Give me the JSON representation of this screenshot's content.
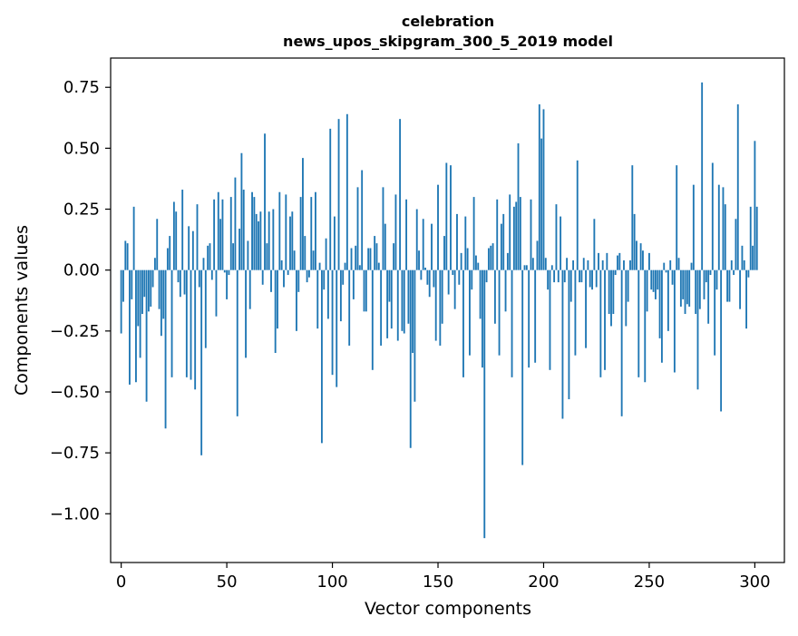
{
  "chart_data": {
    "type": "bar",
    "title_line1": "celebration",
    "title_line2": "news_upos_skipgram_300_5_2019 model",
    "xlabel": "Vector components",
    "ylabel": "Components values",
    "xlim": [
      -5,
      314
    ],
    "ylim": [
      -1.2,
      0.87
    ],
    "xticks": [
      0,
      50,
      100,
      150,
      200,
      250,
      300
    ],
    "xtick_labels": [
      "0",
      "50",
      "100",
      "150",
      "200",
      "250",
      "300"
    ],
    "yticks": [
      0.75,
      0.5,
      0.25,
      0.0,
      -0.25,
      -0.5,
      -0.75,
      -1.0
    ],
    "ytick_labels": [
      "0.75",
      "0.50",
      "0.25",
      "0.00",
      "−0.25",
      "−0.50",
      "−0.75",
      "−1.00"
    ],
    "bar_color": "#1f77b4",
    "grid": false,
    "values": [
      -0.26,
      -0.13,
      0.12,
      0.11,
      -0.47,
      -0.12,
      0.26,
      -0.46,
      -0.23,
      -0.36,
      -0.18,
      -0.11,
      -0.54,
      -0.17,
      -0.15,
      -0.07,
      0.05,
      0.21,
      -0.16,
      -0.27,
      -0.2,
      -0.65,
      0.09,
      0.14,
      -0.44,
      0.28,
      0.24,
      -0.05,
      -0.11,
      0.33,
      -0.1,
      -0.44,
      0.18,
      -0.45,
      0.16,
      -0.49,
      0.27,
      -0.07,
      -0.76,
      0.05,
      -0.32,
      0.1,
      0.11,
      -0.04,
      0.29,
      -0.19,
      0.32,
      0.21,
      0.29,
      -0.01,
      -0.12,
      -0.02,
      0.3,
      0.11,
      0.38,
      -0.6,
      0.17,
      0.48,
      0.33,
      -0.36,
      0.12,
      -0.16,
      0.32,
      0.3,
      0.23,
      0.2,
      0.24,
      -0.06,
      0.56,
      0.11,
      0.24,
      -0.09,
      0.25,
      -0.34,
      -0.24,
      0.32,
      0.04,
      -0.07,
      0.31,
      -0.02,
      0.22,
      0.24,
      0.08,
      -0.25,
      -0.09,
      0.3,
      0.46,
      0.14,
      -0.05,
      -0.03,
      0.3,
      0.08,
      0.32,
      -0.24,
      0.03,
      -0.71,
      -0.08,
      0.13,
      -0.2,
      0.58,
      -0.43,
      0.22,
      -0.48,
      0.62,
      -0.21,
      -0.06,
      0.03,
      0.64,
      -0.31,
      0.09,
      -0.12,
      0.1,
      0.34,
      0.02,
      0.41,
      -0.17,
      -0.17,
      0.09,
      0.09,
      -0.41,
      0.14,
      0.11,
      0.03,
      -0.31,
      0.34,
      0.19,
      -0.28,
      -0.13,
      -0.24,
      0.11,
      0.31,
      -0.29,
      0.62,
      -0.25,
      -0.26,
      0.29,
      -0.22,
      -0.73,
      -0.34,
      -0.54,
      0.25,
      0.08,
      -0.04,
      0.21,
      0.01,
      -0.06,
      -0.11,
      0.19,
      -0.07,
      -0.29,
      0.35,
      -0.31,
      -0.22,
      0.14,
      0.44,
      -0.1,
      0.43,
      -0.02,
      -0.16,
      0.23,
      -0.06,
      0.07,
      -0.44,
      0.22,
      0.09,
      -0.35,
      -0.08,
      0.3,
      0.06,
      0.03,
      -0.2,
      -0.4,
      -1.1,
      -0.05,
      0.09,
      0.1,
      0.11,
      -0.22,
      0.29,
      -0.35,
      0.19,
      0.23,
      -0.17,
      0.07,
      0.31,
      -0.44,
      0.26,
      0.28,
      0.52,
      0.3,
      -0.8,
      0.02,
      0.02,
      -0.4,
      0.29,
      0.05,
      -0.38,
      0.12,
      0.68,
      0.54,
      0.66,
      0.05,
      -0.08,
      -0.41,
      0.02,
      -0.05,
      0.27,
      -0.05,
      0.22,
      -0.61,
      -0.05,
      0.05,
      -0.53,
      -0.13,
      0.04,
      -0.35,
      0.45,
      -0.05,
      -0.05,
      0.05,
      -0.32,
      0.04,
      -0.07,
      -0.08,
      0.21,
      -0.07,
      0.07,
      -0.44,
      0.04,
      -0.41,
      0.07,
      -0.18,
      -0.23,
      -0.18,
      -0.02,
      0.06,
      0.07,
      -0.6,
      0.04,
      -0.23,
      -0.13,
      0.04,
      0.43,
      0.23,
      0.12,
      -0.44,
      0.11,
      0.08,
      -0.46,
      -0.17,
      0.07,
      -0.08,
      -0.09,
      -0.12,
      -0.08,
      -0.28,
      -0.38,
      0.03,
      -0.01,
      -0.25,
      0.04,
      -0.06,
      -0.42,
      0.43,
      0.05,
      -0.15,
      -0.12,
      -0.18,
      -0.14,
      -0.15,
      0.03,
      0.35,
      -0.18,
      -0.49,
      -0.16,
      0.77,
      -0.12,
      -0.05,
      -0.22,
      -0.02,
      0.44,
      -0.35,
      -0.08,
      0.35,
      -0.58,
      0.34,
      0.27,
      -0.13,
      -0.13,
      0.04,
      -0.02,
      0.21,
      0.68,
      -0.16,
      0.1,
      0.04,
      -0.24,
      -0.03,
      0.26,
      0.1,
      0.53,
      0.26
    ]
  }
}
